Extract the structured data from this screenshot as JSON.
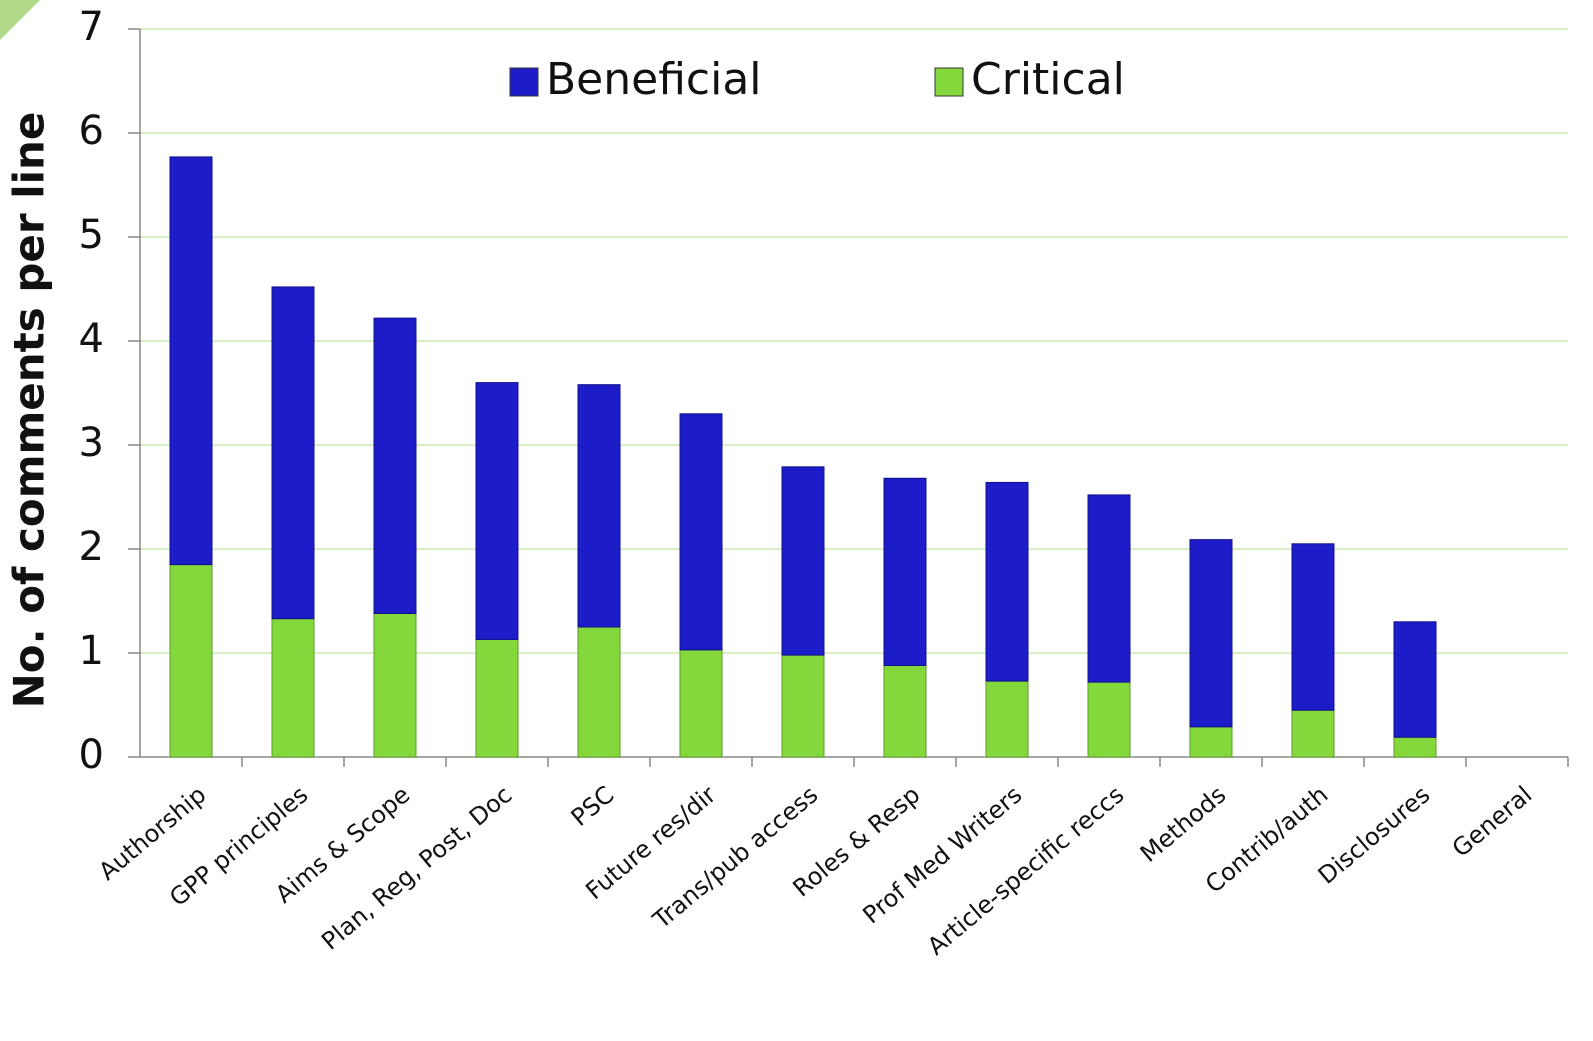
{
  "chart_data": {
    "type": "stacked-bar",
    "y_label": "No. of comments per line",
    "categories": [
      "Authorship",
      "GPP principles",
      "Aims & Scope",
      "Plan, Reg, Post, Doc",
      "PSC",
      "Future res/dir",
      "Trans/pub access",
      "Roles & Resp",
      "Prof Med Writers",
      "Article-specific reccs",
      "Methods",
      "Contrib/auth",
      "Disclosures",
      "General"
    ],
    "series": [
      {
        "name": "Critical",
        "color": "#84d83c",
        "values": [
          1.85,
          1.33,
          1.38,
          1.13,
          1.25,
          1.03,
          0.98,
          0.88,
          0.73,
          0.72,
          0.29,
          0.45,
          0.19,
          0
        ]
      },
      {
        "name": "Beneficial",
        "color": "#1c1cc8",
        "values": [
          3.92,
          3.19,
          2.84,
          2.47,
          2.33,
          2.27,
          1.81,
          1.8,
          1.91,
          1.8,
          1.8,
          1.6,
          1.11,
          0
        ]
      }
    ],
    "ylim": [
      0,
      7
    ],
    "yticks": [
      0,
      1,
      2,
      3,
      4,
      5,
      6,
      7
    ],
    "grid": true,
    "legend": "top"
  }
}
